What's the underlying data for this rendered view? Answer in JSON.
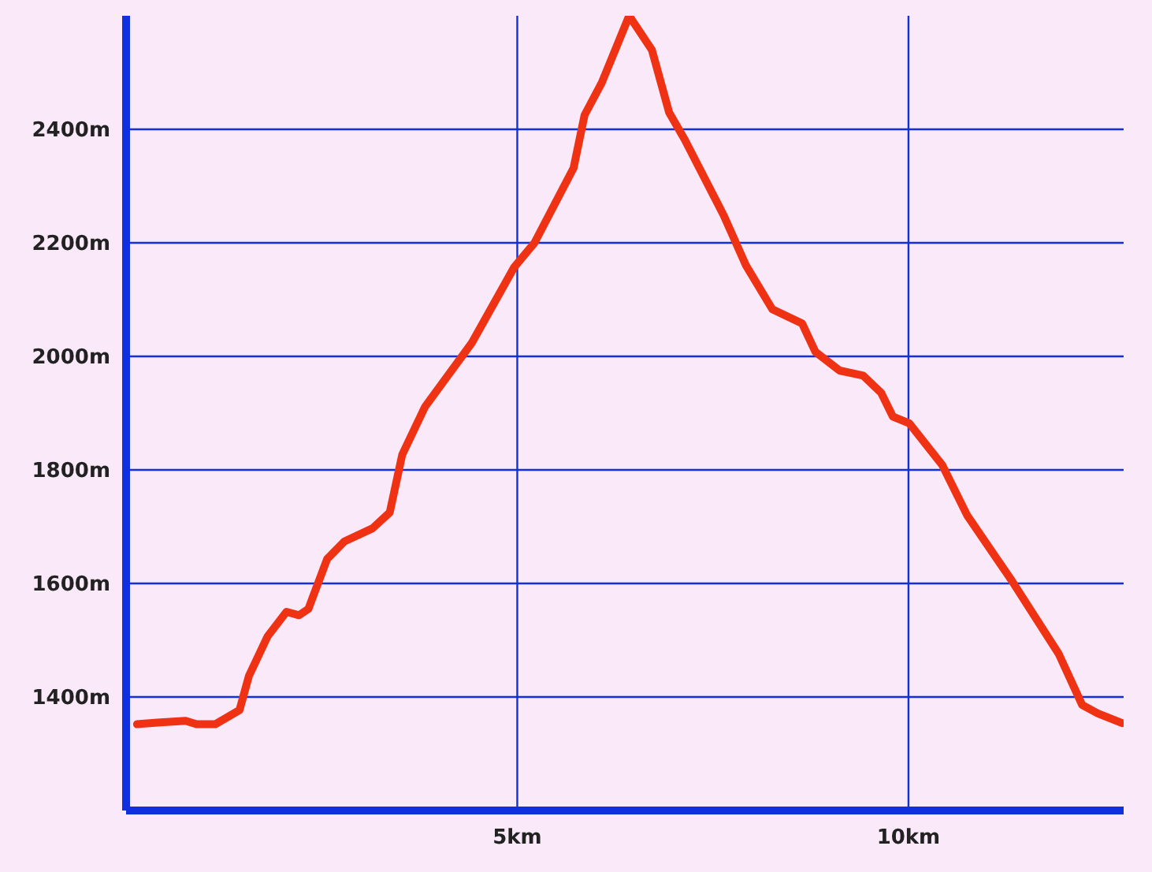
{
  "chart_data": {
    "type": "line",
    "x": [
      0.14,
      0.4,
      0.76,
      0.9,
      1.14,
      1.45,
      1.57,
      1.81,
      2.05,
      2.21,
      2.33,
      2.57,
      2.79,
      3.15,
      3.37,
      3.53,
      3.82,
      4.42,
      4.96,
      5.22,
      5.72,
      5.86,
      6.08,
      6.43,
      6.72,
      6.94,
      7.14,
      7.64,
      7.92,
      8.26,
      8.64,
      8.81,
      9.12,
      9.42,
      9.65,
      9.8,
      10.01,
      10.43,
      10.75,
      11.32,
      11.92,
      12.22,
      12.42,
      12.73
    ],
    "series": [
      {
        "color": "#f03214",
        "values": [
          1352,
          1355,
          1358,
          1352,
          1352,
          1377,
          1437,
          1507,
          1550,
          1544,
          1555,
          1643,
          1674,
          1697,
          1725,
          1827,
          1911,
          2024,
          2157,
          2200,
          2332,
          2425,
          2482,
          2600,
          2540,
          2430,
          2382,
          2248,
          2161,
          2083,
          2058,
          2008,
          1975,
          1966,
          1936,
          1894,
          1882,
          1809,
          1720,
          1605,
          1476,
          1386,
          1371,
          1354
        ]
      }
    ],
    "xlim": [
      0,
      12.75
    ],
    "ylim": [
      1200,
      2600
    ],
    "xticks": [
      {
        "value": 5,
        "label": "5km"
      },
      {
        "value": 10,
        "label": "10km"
      }
    ],
    "yticks": [
      {
        "value": 1400,
        "label": "1400m"
      },
      {
        "value": 1600,
        "label": "1600m"
      },
      {
        "value": 1800,
        "label": "1800m"
      },
      {
        "value": 2000,
        "label": "2000m"
      },
      {
        "value": 2200,
        "label": "2200m"
      },
      {
        "value": 2400,
        "label": "2400m"
      }
    ],
    "grid": true,
    "marker": "none",
    "line_style": "solid"
  }
}
